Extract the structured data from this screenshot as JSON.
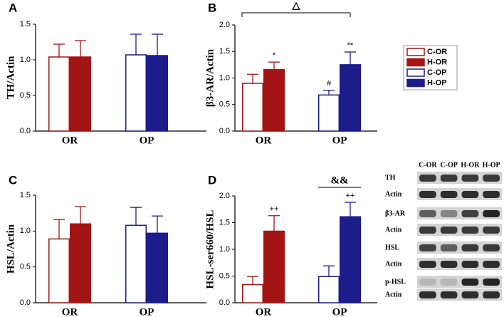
{
  "chart_data": [
    {
      "type": "bar",
      "panel_label": "A",
      "ylabel": "TH/Actin",
      "categories": [
        "OR",
        "OP"
      ],
      "ylim": [
        0,
        1.5
      ],
      "yticks": [
        {
          "value": 0,
          "label": "0.0"
        },
        0.5,
        {
          "value": 1,
          "label": "1.0"
        },
        1.5
      ],
      "series": [
        {
          "name": "C-OR",
          "color": "#a31515",
          "hollow": true,
          "values": [
            1.04,
            null
          ],
          "errors": [
            0.18,
            null
          ]
        },
        {
          "name": "H-OR",
          "color": "#a31515",
          "hollow": false,
          "values": [
            1.04,
            null
          ],
          "errors": [
            0.23,
            null
          ]
        },
        {
          "name": "C-OP",
          "color": "#1c1c8a",
          "hollow": true,
          "values": [
            null,
            1.07
          ],
          "errors": [
            null,
            0.29
          ]
        },
        {
          "name": "H-OP",
          "color": "#1c1c8a",
          "hollow": false,
          "values": [
            null,
            1.06
          ],
          "errors": [
            null,
            0.3
          ]
        }
      ]
    },
    {
      "type": "bar",
      "panel_label": "B",
      "ylabel": "β3-AR/Actin",
      "categories": [
        "OR",
        "OP"
      ],
      "ylim": [
        0,
        2
      ],
      "yticks": [
        {
          "value": 0,
          "label": "0.0"
        },
        0.5,
        {
          "value": 1,
          "label": "1.0"
        },
        1.5,
        {
          "value": 2,
          "label": "2.0"
        }
      ],
      "bracket_label": "△",
      "series": [
        {
          "name": "C-OR",
          "color": "#a31515",
          "hollow": true,
          "values": [
            0.9,
            null
          ],
          "errors": [
            0.17,
            null
          ],
          "marks": [
            null,
            null
          ]
        },
        {
          "name": "H-OR",
          "color": "#a31515",
          "hollow": false,
          "values": [
            1.16,
            null
          ],
          "errors": [
            0.14,
            null
          ],
          "marks": [
            "*",
            null
          ]
        },
        {
          "name": "C-OP",
          "color": "#1c1c8a",
          "hollow": true,
          "values": [
            null,
            0.68
          ],
          "errors": [
            null,
            0.09
          ],
          "marks": [
            null,
            "#"
          ]
        },
        {
          "name": "H-OP",
          "color": "#1c1c8a",
          "hollow": false,
          "values": [
            null,
            1.25
          ],
          "errors": [
            null,
            0.24
          ],
          "marks": [
            null,
            "**"
          ]
        }
      ]
    },
    {
      "type": "bar",
      "panel_label": "C",
      "ylabel": "HSL/Actin",
      "categories": [
        "OR",
        "OP"
      ],
      "ylim": [
        0,
        1.5
      ],
      "yticks": [
        {
          "value": 0,
          "label": "0.0"
        },
        0.5,
        {
          "value": 1,
          "label": "1.0"
        },
        1.5
      ],
      "series": [
        {
          "name": "C-OR",
          "color": "#a31515",
          "hollow": true,
          "values": [
            0.89,
            null
          ],
          "errors": [
            0.27,
            null
          ]
        },
        {
          "name": "H-OR",
          "color": "#a31515",
          "hollow": false,
          "values": [
            1.1,
            null
          ],
          "errors": [
            0.24,
            null
          ]
        },
        {
          "name": "C-OP",
          "color": "#1c1c8a",
          "hollow": true,
          "values": [
            null,
            1.08
          ],
          "errors": [
            null,
            0.25
          ]
        },
        {
          "name": "H-OP",
          "color": "#1c1c8a",
          "hollow": false,
          "values": [
            null,
            0.97
          ],
          "errors": [
            null,
            0.24
          ]
        }
      ]
    },
    {
      "type": "bar",
      "panel_label": "D",
      "ylabel": "HSL-ser660/HSL",
      "categories": [
        "OR",
        "OP"
      ],
      "ylim": [
        0,
        2
      ],
      "yticks": [
        {
          "value": 0,
          "label": "0.0"
        },
        0.5,
        {
          "value": 1,
          "label": "1.0"
        },
        1.5,
        {
          "value": 2,
          "label": "2.0"
        }
      ],
      "group_label": "&&",
      "series": [
        {
          "name": "C-OR",
          "color": "#a31515",
          "hollow": true,
          "values": [
            0.34,
            null
          ],
          "errors": [
            0.15,
            null
          ],
          "marks": [
            null,
            null
          ]
        },
        {
          "name": "H-OR",
          "color": "#a31515",
          "hollow": false,
          "values": [
            1.34,
            null
          ],
          "errors": [
            0.29,
            null
          ],
          "marks": [
            "++",
            null
          ]
        },
        {
          "name": "C-OP",
          "color": "#1c1c8a",
          "hollow": true,
          "values": [
            null,
            0.49
          ],
          "errors": [
            null,
            0.2
          ],
          "marks": [
            null,
            null
          ]
        },
        {
          "name": "H-OP",
          "color": "#1c1c8a",
          "hollow": false,
          "values": [
            null,
            1.61
          ],
          "errors": [
            null,
            0.27
          ],
          "marks": [
            null,
            "++"
          ]
        }
      ]
    }
  ],
  "blot": {
    "columns": [
      "C-OR",
      "C-OP",
      "H-OR",
      "H-OP"
    ],
    "rows": [
      "TH",
      "Actin",
      "β3-AR",
      "Actin",
      "HSL",
      "Actin",
      "p-HSL",
      "Actin"
    ]
  }
}
